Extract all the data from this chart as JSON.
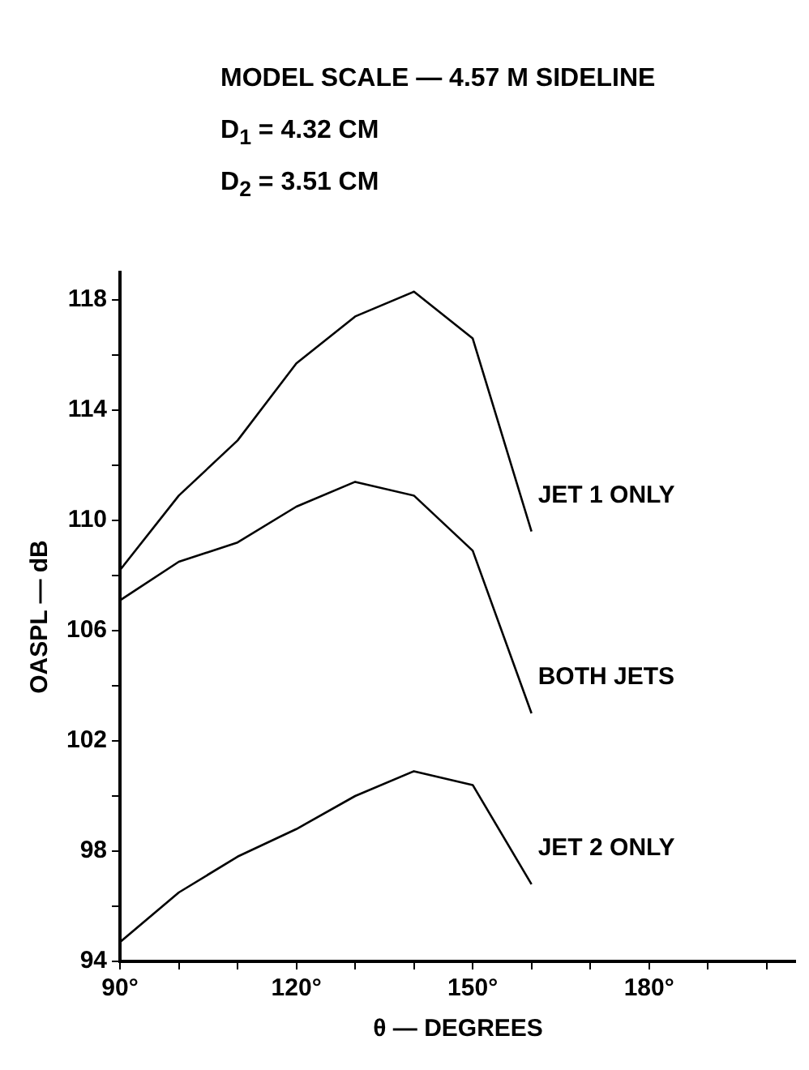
{
  "chart_data": {
    "type": "line",
    "title": "MODEL SCALE — 4.57 M SIDELINE",
    "annotations": [
      "D$_{1}$ = 4.32 CM",
      "D$_{2}$ = 3.51 CM"
    ],
    "xlabel": "θ — DEGREES",
    "ylabel": "OASPL — dB",
    "x": [
      90,
      100,
      110,
      120,
      130,
      140,
      150,
      160
    ],
    "series": [
      {
        "name": "JET 1 ONLY",
        "color": "#000000",
        "values": [
          108.2,
          110.9,
          112.9,
          115.7,
          117.4,
          118.3,
          116.6,
          109.6
        ]
      },
      {
        "name": "BOTH JETS",
        "color": "#000000",
        "values": [
          107.1,
          108.5,
          109.2,
          110.5,
          111.4,
          110.9,
          108.9,
          103.0
        ]
      },
      {
        "name": "JET 2 ONLY",
        "color": "#000000",
        "values": [
          94.7,
          96.5,
          97.8,
          98.8,
          100.0,
          100.9,
          100.4,
          96.8
        ]
      }
    ],
    "xlim": [
      90,
      205
    ],
    "xticks": [
      {
        "value": 90,
        "label": "90°"
      },
      {
        "value": 100,
        "label": null
      },
      {
        "value": 110,
        "label": null
      },
      {
        "value": 120,
        "label": "120°"
      },
      {
        "value": 130,
        "label": null
      },
      {
        "value": 140,
        "label": null
      },
      {
        "value": 150,
        "label": "150°"
      },
      {
        "value": 160,
        "label": null
      },
      {
        "value": 170,
        "label": null
      },
      {
        "value": 180,
        "label": "180°"
      },
      {
        "value": 190,
        "label": null
      },
      {
        "value": 200,
        "label": null
      }
    ],
    "ylim": [
      94,
      119
    ],
    "yticks": [
      94,
      {
        "value": 96,
        "label": null
      },
      98,
      {
        "value": 100,
        "label": null
      },
      102,
      {
        "value": 104,
        "label": null
      },
      106,
      {
        "value": 108,
        "label": null
      },
      110,
      {
        "value": 112,
        "label": null
      },
      114,
      {
        "value": 116,
        "label": null
      },
      118
    ],
    "marker": "none",
    "line_style": "solid",
    "legend": false,
    "grid": false
  }
}
